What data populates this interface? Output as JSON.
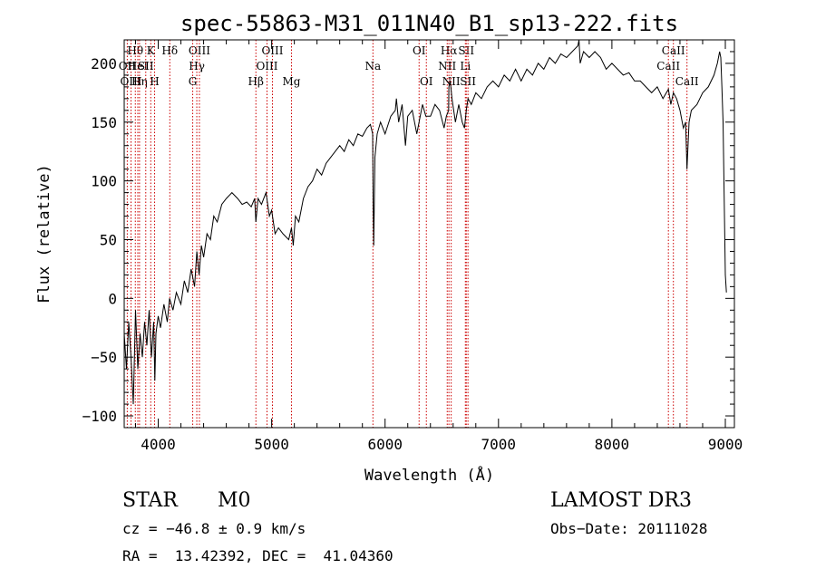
{
  "chart_data": {
    "type": "line",
    "title": "spec-55863-M31_011N40_B1_sp13-222.fits",
    "xlabel": "Wavelength (Å)",
    "ylabel": "Flux (relative)",
    "xlim": [
      3700,
      9080
    ],
    "ylim": [
      -110,
      220
    ],
    "xticks": [
      4000,
      5000,
      6000,
      7000,
      8000,
      9000
    ],
    "yticks": [
      -100,
      -50,
      0,
      50,
      100,
      150,
      200
    ],
    "series": [
      {
        "name": "flux",
        "x": [
          3700,
          3720,
          3740,
          3760,
          3780,
          3800,
          3820,
          3840,
          3860,
          3880,
          3900,
          3920,
          3940,
          3960,
          3970,
          3980,
          4000,
          4020,
          4050,
          4080,
          4100,
          4130,
          4160,
          4200,
          4230,
          4260,
          4290,
          4320,
          4340,
          4360,
          4380,
          4400,
          4430,
          4460,
          4490,
          4520,
          4560,
          4600,
          4650,
          4700,
          4740,
          4780,
          4820,
          4850,
          4861,
          4880,
          4910,
          4950,
          4980,
          5000,
          5030,
          5060,
          5100,
          5150,
          5175,
          5190,
          5210,
          5240,
          5280,
          5320,
          5360,
          5400,
          5440,
          5480,
          5520,
          5560,
          5600,
          5640,
          5680,
          5720,
          5760,
          5800,
          5840,
          5870,
          5890,
          5895,
          5900,
          5910,
          5930,
          5960,
          6000,
          6050,
          6090,
          6100,
          6120,
          6150,
          6180,
          6200,
          6240,
          6280,
          6300,
          6330,
          6360,
          6400,
          6440,
          6480,
          6520,
          6540,
          6560,
          6563,
          6575,
          6590,
          6620,
          6650,
          6680,
          6700,
          6716,
          6731,
          6760,
          6800,
          6850,
          6900,
          6950,
          7000,
          7050,
          7100,
          7150,
          7200,
          7250,
          7300,
          7350,
          7400,
          7450,
          7500,
          7550,
          7600,
          7650,
          7700,
          7710,
          7720,
          7750,
          7800,
          7850,
          7900,
          7950,
          8000,
          8050,
          8100,
          8150,
          8200,
          8250,
          8300,
          8350,
          8400,
          8450,
          8498,
          8520,
          8542,
          8570,
          8600,
          8630,
          8650,
          8662,
          8680,
          8700,
          8750,
          8800,
          8850,
          8900,
          8930,
          8950,
          8960,
          8970,
          8980,
          9000,
          9010
        ],
        "y": [
          -30,
          -60,
          -20,
          -50,
          -90,
          -10,
          -60,
          -30,
          -50,
          -20,
          -40,
          -10,
          -50,
          -20,
          -70,
          -30,
          -15,
          -25,
          -5,
          -20,
          0,
          -10,
          5,
          -5,
          15,
          5,
          25,
          10,
          40,
          20,
          45,
          35,
          55,
          50,
          70,
          65,
          80,
          85,
          90,
          85,
          80,
          82,
          78,
          85,
          65,
          85,
          80,
          90,
          70,
          75,
          55,
          60,
          55,
          50,
          60,
          45,
          70,
          65,
          85,
          95,
          100,
          110,
          105,
          115,
          120,
          125,
          130,
          125,
          135,
          130,
          140,
          138,
          145,
          148,
          140,
          80,
          45,
          120,
          140,
          150,
          140,
          155,
          160,
          170,
          150,
          165,
          130,
          155,
          160,
          140,
          150,
          165,
          155,
          155,
          165,
          160,
          145,
          155,
          160,
          180,
          185,
          170,
          150,
          165,
          150,
          145,
          160,
          170,
          165,
          175,
          170,
          180,
          185,
          180,
          190,
          185,
          195,
          185,
          195,
          190,
          200,
          195,
          205,
          200,
          208,
          205,
          210,
          215,
          230,
          200,
          210,
          205,
          210,
          205,
          195,
          200,
          195,
          190,
          192,
          185,
          185,
          180,
          175,
          180,
          170,
          178,
          165,
          175,
          170,
          160,
          145,
          150,
          110,
          150,
          160,
          165,
          175,
          180,
          190,
          200,
          210,
          205,
          180,
          150,
          20,
          5
        ]
      }
    ],
    "lines": [
      {
        "name": "Hθ",
        "wl": 3798,
        "row": 1
      },
      {
        "name": "OII",
        "wl": 3727,
        "row": 2
      },
      {
        "name": "OIII",
        "wl": 3760,
        "row": 3
      },
      {
        "name": "HeI",
        "wl": 3820,
        "row": 2
      },
      {
        "name": "Hη",
        "wl": 3835,
        "row": 3
      },
      {
        "name": "K",
        "wl": 3934,
        "row": 1
      },
      {
        "name": "SII",
        "wl": 3890,
        "row": 2
      },
      {
        "name": "H",
        "wl": 3968,
        "row": 3
      },
      {
        "name": "Hδ",
        "wl": 4102,
        "row": 1
      },
      {
        "name": "OIII",
        "wl": 4363,
        "row": 1
      },
      {
        "name": "Hγ",
        "wl": 4340,
        "row": 2
      },
      {
        "name": "G",
        "wl": 4304,
        "row": 3
      },
      {
        "name": "Hβ",
        "wl": 4861,
        "row": 3
      },
      {
        "name": "OIII",
        "wl": 5007,
        "row": 1
      },
      {
        "name": "OIII",
        "wl": 4959,
        "row": 2
      },
      {
        "name": "Mg",
        "wl": 5175,
        "row": 3
      },
      {
        "name": "Na",
        "wl": 5893,
        "row": 2
      },
      {
        "name": "OI",
        "wl": 6300,
        "row": 1
      },
      {
        "name": "OI",
        "wl": 6364,
        "row": 3
      },
      {
        "name": "Hα",
        "wl": 6563,
        "row": 1
      },
      {
        "name": "SII",
        "wl": 6716,
        "row": 1
      },
      {
        "name": "NII",
        "wl": 6548,
        "row": 2
      },
      {
        "name": "Li",
        "wl": 6708,
        "row": 2
      },
      {
        "name": "NII",
        "wl": 6583,
        "row": 3
      },
      {
        "name": "SII",
        "wl": 6731,
        "row": 3
      },
      {
        "name": "CaII",
        "wl": 8542,
        "row": 1
      },
      {
        "name": "CaII",
        "wl": 8498,
        "row": 2
      },
      {
        "name": "CaII",
        "wl": 8662,
        "row": 3
      }
    ]
  },
  "footer": {
    "class_label": "STAR",
    "subclass": "M0",
    "survey": "LAMOST DR3",
    "cz": "cz = −46.8 ± 0.9 km/s",
    "obs_date": "Obs−Date: 20111028",
    "coords": "RA =  13.42392, DEC =  41.04360"
  },
  "colors": {
    "line_marker": "#cc0000",
    "spectrum": "#000000",
    "axes": "#000000"
  }
}
